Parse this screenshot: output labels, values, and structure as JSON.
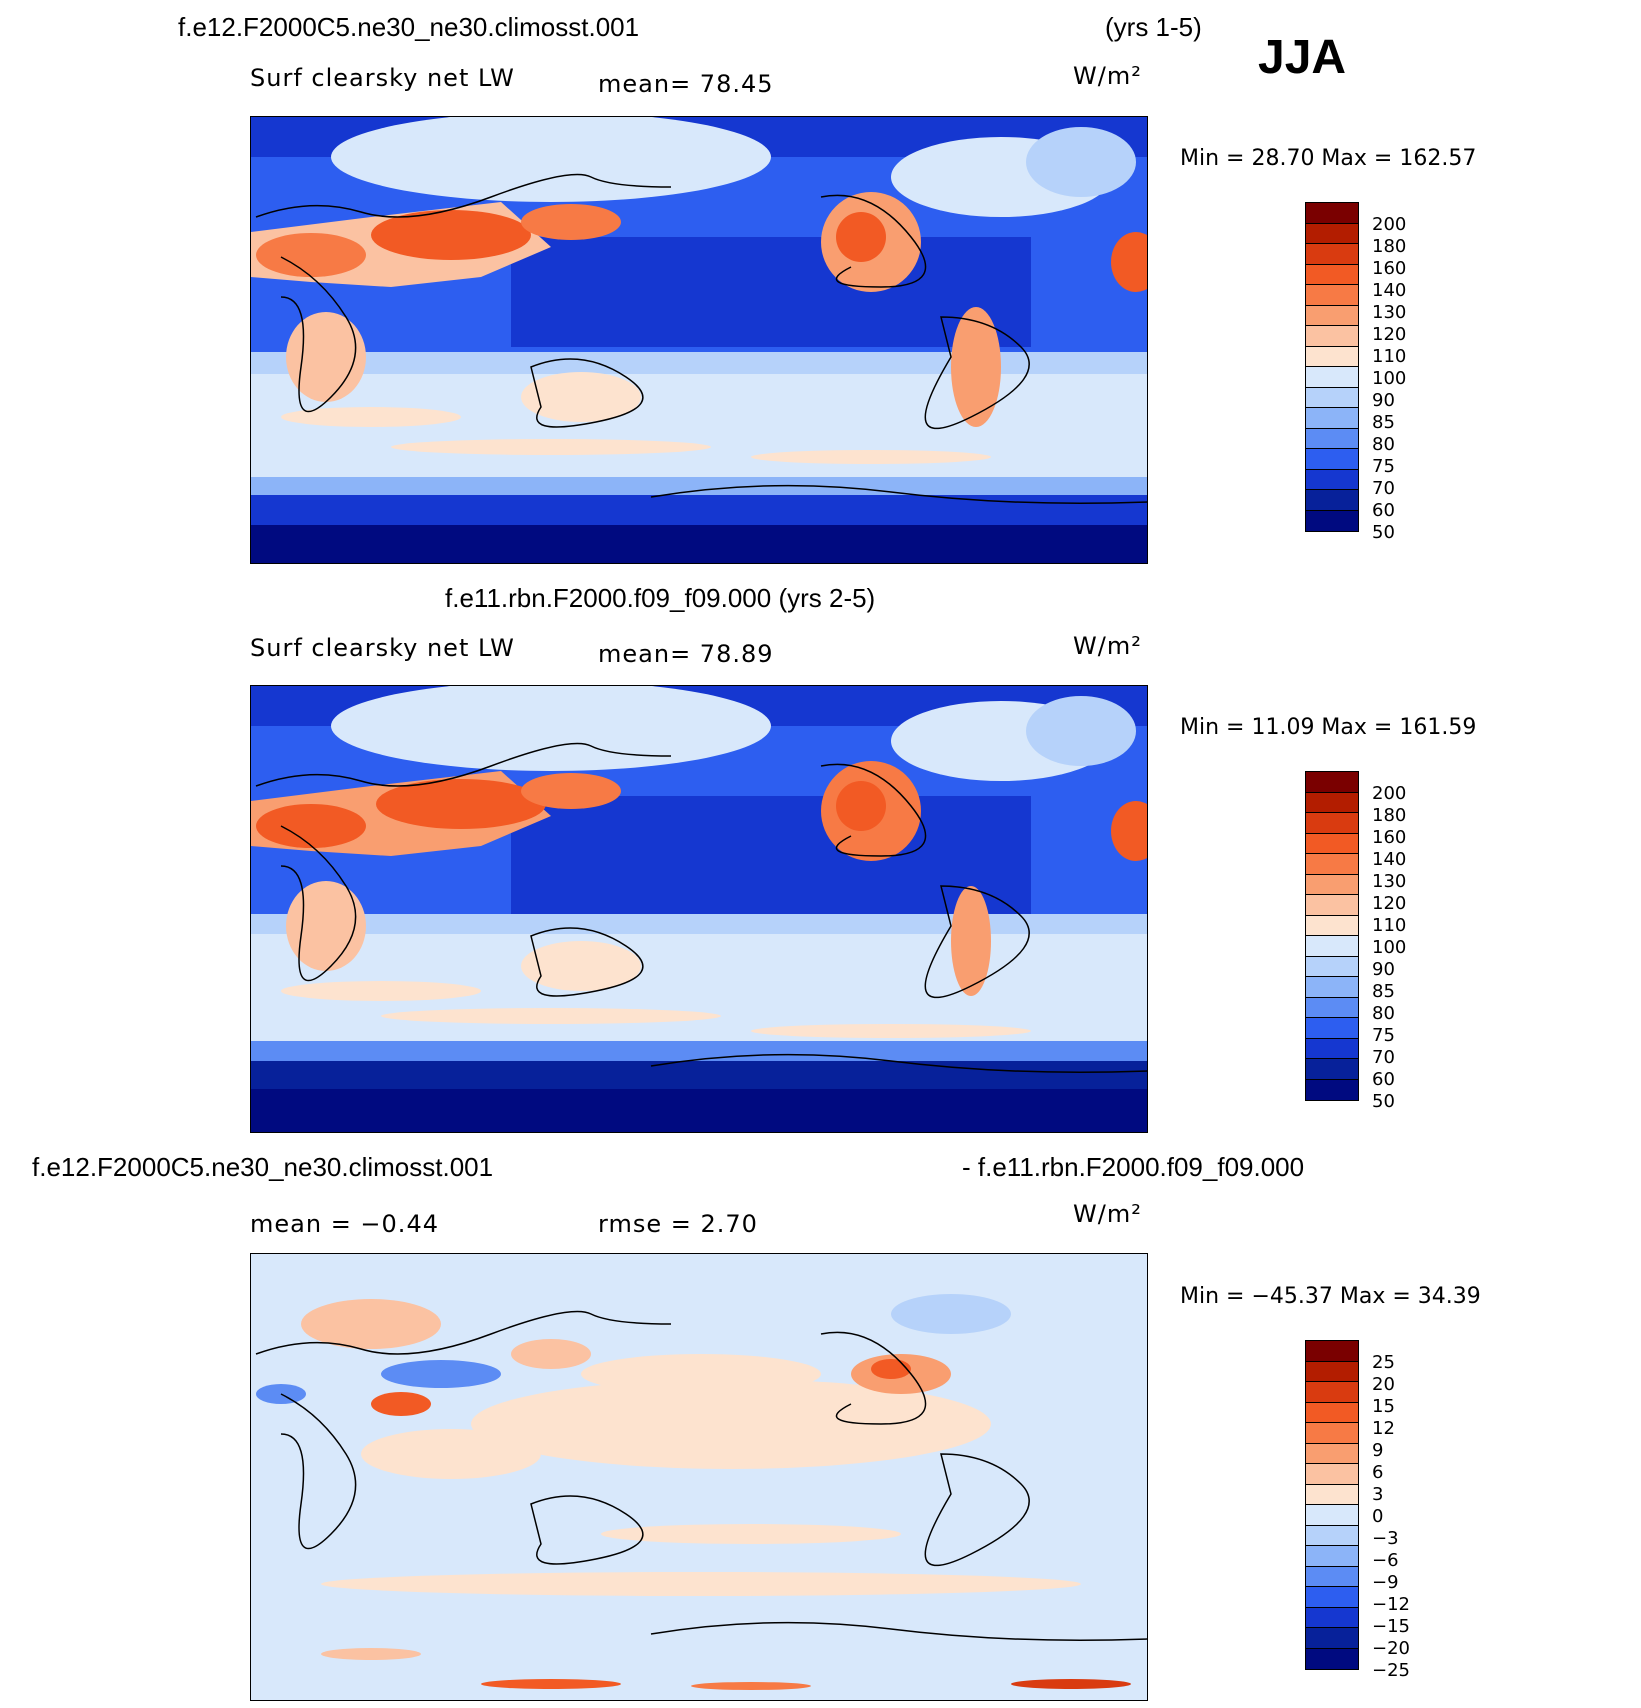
{
  "season": "JJA",
  "panels": [
    {
      "case_left": "f.e12.F2000C5.ne30_ne30.climosst.001",
      "case_right": "(yrs 1-5)",
      "variable": "Surf  clearsky  net  LW",
      "mean_label": "mean=   78.45",
      "units": "W/m²",
      "minmax": "Min  =    28.70  Max  =  162.57",
      "color_levels": [
        "200",
        "180",
        "160",
        "140",
        "130",
        "120",
        "110",
        "100",
        "90",
        "85",
        "80",
        "75",
        "70",
        "60",
        "50"
      ]
    },
    {
      "case_center": "f.e11.rbn.F2000.f09_f09.000 (yrs 2-5)",
      "variable": "Surf  clearsky  net  LW",
      "mean_label": "mean=   78.89",
      "units": "W/m²",
      "minmax": "Min  =    11.09  Max  =  161.59",
      "color_levels": [
        "200",
        "180",
        "160",
        "140",
        "130",
        "120",
        "110",
        "100",
        "90",
        "85",
        "80",
        "75",
        "70",
        "60",
        "50"
      ]
    },
    {
      "case_left": "f.e12.F2000C5.ne30_ne30.climosst.001",
      "case_right": "- f.e11.rbn.F2000.f09_f09.000",
      "mean_label": "mean  =   −0.44",
      "rmse_label": "rmse  =    2.70",
      "units": "W/m²",
      "minmax": "Min  = −45.37  Max  =   34.39",
      "color_levels": [
        "25",
        "20",
        "15",
        "12",
        "9",
        "6",
        "3",
        "0",
        "−3",
        "−6",
        "−9",
        "−12",
        "−15",
        "−20",
        "−25"
      ]
    }
  ],
  "colors": {
    "warm_scale": [
      "#7a0000",
      "#b31d00",
      "#d93b10",
      "#f25a24",
      "#f77a45",
      "#f99e70",
      "#fbc2a2",
      "#fde3cf",
      "#d8e8fb",
      "#b6d2fa",
      "#8cb4f8",
      "#5c8cf4",
      "#2d5ef0",
      "#1537d0",
      "#07219a",
      "#000a80"
    ],
    "diff_scale": [
      "#7a0000",
      "#b31d00",
      "#d93b10",
      "#f25a24",
      "#f77a45",
      "#f99e70",
      "#fbc2a2",
      "#fde3cf",
      "#d8e8fb",
      "#b6d2fa",
      "#8cb4f8",
      "#5c8cf4",
      "#2d5ef0",
      "#1537d0",
      "#07219a",
      "#000a80"
    ]
  }
}
